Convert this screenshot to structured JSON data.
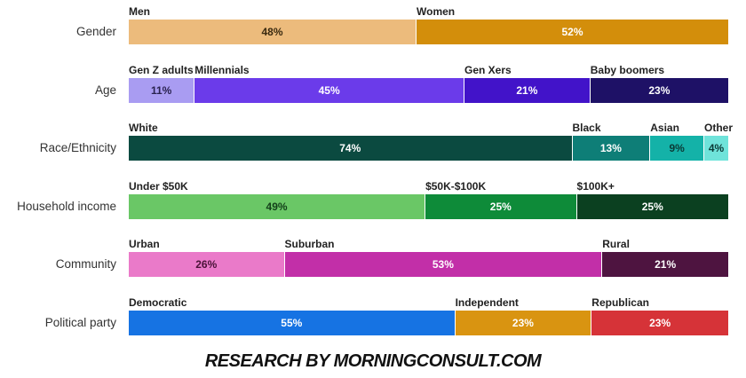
{
  "chart_data": {
    "type": "bar",
    "orientation": "horizontal-stacked",
    "unit": "%",
    "xlim": [
      0,
      100
    ],
    "grid": false,
    "rows": [
      {
        "label": "Gender",
        "segments": [
          {
            "name": "Men",
            "value": 48,
            "value_label": "48%",
            "color": "#ecbb7c",
            "text_color": "#3a2a10"
          },
          {
            "name": "Women",
            "value": 52,
            "value_label": "52%",
            "color": "#d38e0b",
            "text_color": "#ffffff"
          }
        ]
      },
      {
        "label": "Age",
        "segments": [
          {
            "name": "Gen Z adults",
            "value": 11,
            "value_label": "11%",
            "color": "#a99cf2",
            "text_color": "#2a2350"
          },
          {
            "name": "Millennials",
            "value": 45,
            "value_label": "45%",
            "color": "#6b3bea",
            "text_color": "#ffffff"
          },
          {
            "name": "Gen Xers",
            "value": 21,
            "value_label": "21%",
            "color": "#4213c9",
            "text_color": "#ffffff"
          },
          {
            "name": "Baby boomers",
            "value": 23,
            "value_label": "23%",
            "color": "#1e1166",
            "text_color": "#ffffff"
          }
        ]
      },
      {
        "label": "Race/Ethnicity",
        "segments": [
          {
            "name": "White",
            "value": 74,
            "value_label": "74%",
            "color": "#0b4a40",
            "text_color": "#ffffff"
          },
          {
            "name": "Black",
            "value": 13,
            "value_label": "13%",
            "color": "#0e7e77",
            "text_color": "#ffffff"
          },
          {
            "name": "Asian",
            "value": 9,
            "value_label": "9%",
            "color": "#14b2a8",
            "text_color": "#0b3a36"
          },
          {
            "name": "Other",
            "value": 4,
            "value_label": "4%",
            "color": "#6fe3da",
            "text_color": "#0b3a36"
          }
        ]
      },
      {
        "label": "Household income",
        "segments": [
          {
            "name": "Under $50K",
            "value": 49,
            "value_label": "49%",
            "color": "#6ac766",
            "text_color": "#14401a"
          },
          {
            "name": "$50K-$100K",
            "value": 25,
            "value_label": "25%",
            "color": "#0e8b39",
            "text_color": "#ffffff"
          },
          {
            "name": "$100K+",
            "value": 25,
            "value_label": "25%",
            "color": "#0b4020",
            "text_color": "#ffffff"
          }
        ]
      },
      {
        "label": "Community",
        "segments": [
          {
            "name": "Urban",
            "value": 26,
            "value_label": "26%",
            "color": "#ea7ac9",
            "text_color": "#4a1238"
          },
          {
            "name": "Suburban",
            "value": 53,
            "value_label": "53%",
            "color": "#c22fa8",
            "text_color": "#ffffff"
          },
          {
            "name": "Rural",
            "value": 21,
            "value_label": "21%",
            "color": "#4e1440",
            "text_color": "#ffffff"
          }
        ]
      },
      {
        "label": "Political party",
        "segments": [
          {
            "name": "Democratic",
            "value": 55,
            "value_label": "55%",
            "color": "#1673e3",
            "text_color": "#ffffff"
          },
          {
            "name": "Independent",
            "value": 23,
            "value_label": "23%",
            "color": "#d99411",
            "text_color": "#ffffff"
          },
          {
            "name": "Republican",
            "value": 23,
            "value_label": "23%",
            "color": "#d63338",
            "text_color": "#ffffff"
          }
        ]
      }
    ]
  },
  "footer": {
    "text": "RESEARCH BY MORNINGCONSULT.COM"
  }
}
